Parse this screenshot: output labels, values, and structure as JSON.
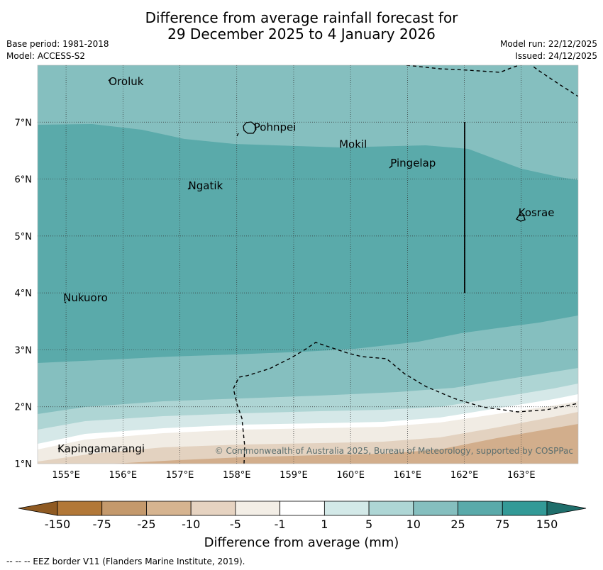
{
  "title": {
    "line1": "Difference from average rainfall forecast for",
    "line2": "29 December 2025 to 4 January 2026"
  },
  "meta": {
    "base_period": "Base period: 1981-2018",
    "model": "Model: ACCESS-S2",
    "model_run": "Model run: 22/12/2025",
    "issued": "Issued: 24/12/2025"
  },
  "map": {
    "lon_ticks": [
      "155°E",
      "156°E",
      "157°E",
      "158°E",
      "159°E",
      "160°E",
      "161°E",
      "162°E",
      "163°E"
    ],
    "lat_ticks": [
      "1°N",
      "2°N",
      "3°N",
      "4°N",
      "5°N",
      "6°N",
      "7°N"
    ],
    "places": [
      {
        "name": "Oroluk",
        "lon": 155.75,
        "lat": 7.65
      },
      {
        "name": "Pohnpei",
        "lon": 158.3,
        "lat": 6.85
      },
      {
        "name": "Mokil",
        "lon": 159.8,
        "lat": 6.55
      },
      {
        "name": "Pingelap",
        "lon": 160.7,
        "lat": 6.22
      },
      {
        "name": "Ngatik",
        "lon": 157.15,
        "lat": 5.82
      },
      {
        "name": "Kosrae",
        "lon": 162.95,
        "lat": 5.35
      },
      {
        "name": "Nukuoro",
        "lon": 154.95,
        "lat": 3.85
      },
      {
        "name": "Kapingamarangi",
        "lon": 154.85,
        "lat": 1.2
      }
    ],
    "copyright": "© Commonwealth of Australia 2025, Bureau of Meteorology, supported by COSPPac",
    "colors": {
      "band_25_75": "#5aaaaa",
      "band_10_25": "#85bfbf",
      "band_5_10": "#aed5d4",
      "band_1_5": "#d5e8e8",
      "band_-1_1": "#ffffff",
      "band_-5_-1": "#f1ece4",
      "band_-10_-5": "#e3d2c0",
      "band_-25_-10": "#d2ae8c"
    }
  },
  "colorbar": {
    "labels": [
      "-150",
      "-75",
      "-25",
      "-10",
      "-5",
      "-1",
      "1",
      "5",
      "10",
      "25",
      "75",
      "150"
    ],
    "colors": [
      "#8f5a22",
      "#b27838",
      "#c4996c",
      "#d6b490",
      "#e6d3c1",
      "#f3eee6",
      "#ffffff",
      "#d3e9e8",
      "#aed6d5",
      "#85bfbf",
      "#5aaaaa",
      "#339a97",
      "#1f6e6b"
    ],
    "title": "Difference from average (mm)"
  },
  "footer": "--  --  -- EEZ border V11 (Flanders Marine Institute, 2019)."
}
